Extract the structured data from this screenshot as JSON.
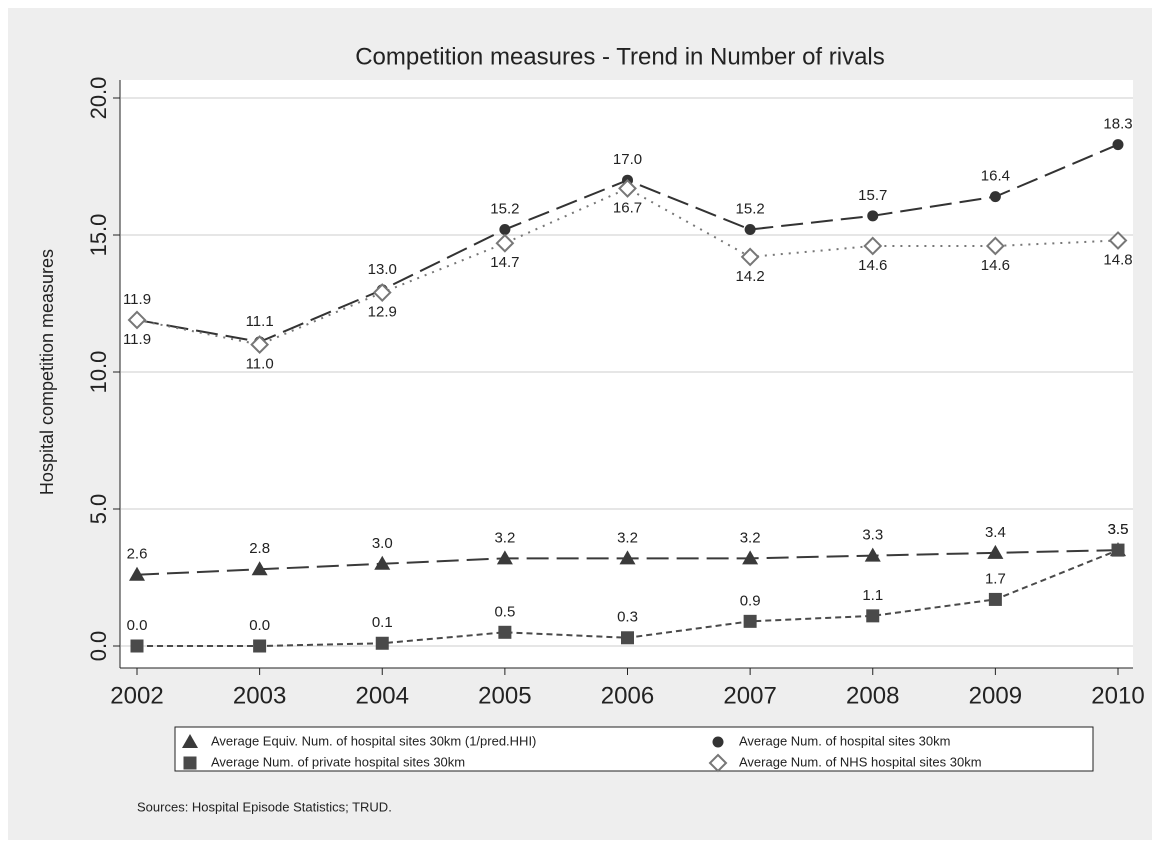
{
  "chart_data": {
    "type": "line",
    "title": "Competition measures - Trend in Number of rivals",
    "y_label": "Hospital competition measures",
    "note": "Sources:  Hospital Episode Statistics; TRUD.",
    "categories": [
      "2002",
      "2003",
      "2004",
      "2005",
      "2006",
      "2007",
      "2008",
      "2009",
      "2010"
    ],
    "ylim": [
      0,
      20
    ],
    "yticks": [
      {
        "value": 0,
        "label": "0.0"
      },
      {
        "value": 5,
        "label": "5.0"
      },
      {
        "value": 10,
        "label": "10.0"
      },
      {
        "value": 15,
        "label": "15.0"
      },
      {
        "value": 20,
        "label": "20.0"
      }
    ],
    "grid": true,
    "series": [
      {
        "name": "Average Equiv. Num. of hospital sites 30km (1/pred.HHI)",
        "color": "#3a3a3a",
        "marker": "triangle",
        "dash": "long",
        "label_side": "above",
        "values": [
          2.6,
          2.8,
          3.0,
          3.2,
          3.2,
          3.2,
          3.3,
          3.4,
          3.5
        ],
        "value_labels": [
          "2.6",
          "2.8",
          "3.0",
          "3.2",
          "3.2",
          "3.2",
          "3.3",
          "3.4",
          "3.5"
        ]
      },
      {
        "name": "Average Num. of hospital sites 30km",
        "color": "#333333",
        "marker": "circle",
        "dash": "long",
        "label_side": "above",
        "values": [
          11.9,
          11.1,
          13.0,
          15.2,
          17.0,
          15.2,
          15.7,
          16.4,
          18.3
        ],
        "value_labels": [
          "11.9",
          "11.1",
          "13.0",
          "15.2",
          "17.0",
          "15.2",
          "15.7",
          "16.4",
          "18.3"
        ]
      },
      {
        "name": "Average Num. of private hospital sites 30km",
        "color": "#4a4a4a",
        "marker": "square",
        "dash": "short",
        "label_side": "above",
        "values": [
          0.0,
          0.0,
          0.1,
          0.5,
          0.3,
          0.9,
          1.1,
          1.7,
          3.5
        ],
        "value_labels": [
          "0.0",
          "0.0",
          "0.1",
          "0.5",
          "0.3",
          "0.9",
          "1.1",
          "1.7",
          "3.5"
        ]
      },
      {
        "name": "Average Num. of NHS hospital sites 30km",
        "color": "#777777",
        "marker": "diamond",
        "dash": "dot",
        "label_side": "below",
        "values": [
          11.9,
          11.0,
          12.9,
          14.7,
          16.7,
          14.2,
          14.6,
          14.6,
          14.8
        ],
        "value_labels": [
          "11.9",
          "11.0",
          "12.9",
          "14.7",
          "16.7",
          "14.2",
          "14.6",
          "14.6",
          "14.8"
        ]
      }
    ]
  }
}
